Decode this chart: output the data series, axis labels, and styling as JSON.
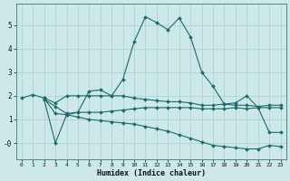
{
  "xlabel": "Humidex (Indice chaleur)",
  "bg_color": "#cce8e8",
  "grid_color": "#aacfcf",
  "line_color": "#1a6b6b",
  "xlim": [
    -0.5,
    23.5
  ],
  "ylim": [
    -0.7,
    5.9
  ],
  "yticks": [
    0,
    1,
    2,
    3,
    4,
    5
  ],
  "ytick_labels": [
    "-0",
    "1",
    "2",
    "3",
    "4",
    "5"
  ],
  "xticks": [
    0,
    1,
    2,
    3,
    4,
    5,
    6,
    7,
    8,
    9,
    10,
    11,
    12,
    13,
    14,
    15,
    16,
    17,
    18,
    19,
    20,
    21,
    22,
    23
  ],
  "line1_x": [
    0,
    1,
    2,
    3,
    4,
    5,
    6,
    7,
    8,
    9,
    10,
    11,
    12,
    13,
    14,
    15,
    16,
    17,
    18,
    19,
    20,
    21,
    22,
    23
  ],
  "line1_y": [
    1.9,
    2.05,
    1.9,
    1.7,
    2.0,
    2.0,
    2.0,
    2.0,
    2.0,
    2.0,
    1.9,
    1.85,
    1.8,
    1.75,
    1.75,
    1.7,
    1.6,
    1.6,
    1.65,
    1.6,
    1.6,
    1.55,
    1.6,
    1.6
  ],
  "line2_x": [
    2,
    3,
    4,
    5,
    6,
    7,
    8,
    9,
    10,
    11,
    12,
    13,
    14,
    15,
    16,
    17,
    18,
    19,
    20,
    21,
    22,
    23
  ],
  "line2_y": [
    1.85,
    1.55,
    1.25,
    1.3,
    1.3,
    1.3,
    1.35,
    1.4,
    1.45,
    1.5,
    1.5,
    1.5,
    1.5,
    1.5,
    1.45,
    1.45,
    1.45,
    1.5,
    1.45,
    1.5,
    1.5,
    1.5
  ],
  "line3_x": [
    2,
    3,
    4,
    5,
    6,
    7,
    8,
    9,
    10,
    11,
    12,
    13,
    14,
    15,
    16,
    17,
    18,
    19,
    20,
    21,
    22,
    23
  ],
  "line3_y": [
    1.9,
    1.25,
    1.2,
    1.3,
    2.2,
    2.25,
    2.0,
    2.7,
    4.3,
    5.35,
    5.1,
    4.8,
    5.3,
    4.5,
    3.0,
    2.4,
    1.65,
    1.7,
    2.0,
    1.5,
    0.45,
    0.45
  ],
  "line4_x": [
    2,
    3,
    4,
    5,
    6,
    7,
    8,
    9,
    10,
    11,
    12,
    13,
    14,
    15,
    16,
    17,
    18,
    19,
    20,
    21,
    22,
    23
  ],
  "line4_y": [
    1.85,
    0.0,
    1.2,
    1.1,
    1.0,
    0.95,
    0.9,
    0.85,
    0.8,
    0.7,
    0.6,
    0.5,
    0.35,
    0.2,
    0.05,
    -0.1,
    -0.15,
    -0.2,
    -0.25,
    -0.25,
    -0.1,
    -0.15
  ]
}
